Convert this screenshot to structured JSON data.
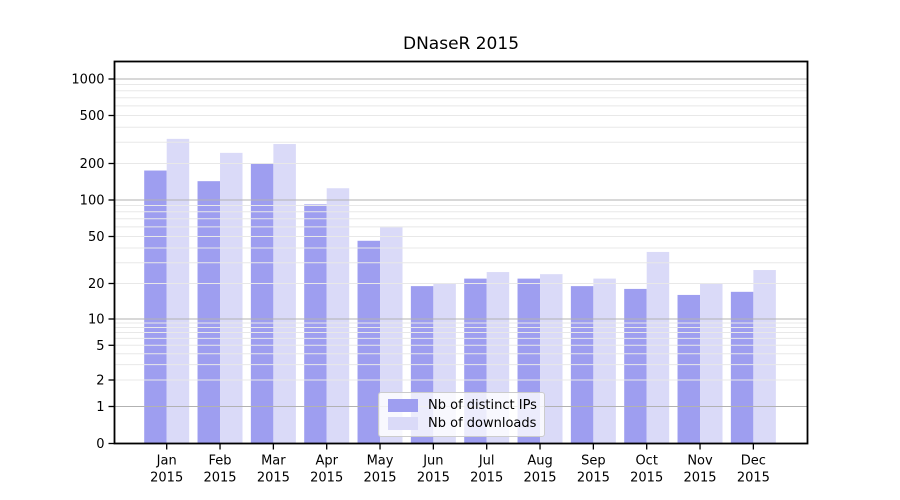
{
  "title": "DNaseR 2015",
  "chart_data": {
    "type": "bar",
    "title": "DNaseR 2015",
    "categories": [
      "Jan 2015",
      "Feb 2015",
      "Mar 2015",
      "Apr 2015",
      "May 2015",
      "Jun 2015",
      "Jul 2015",
      "Aug 2015",
      "Sep 2015",
      "Oct 2015",
      "Nov 2015",
      "Dec 2015"
    ],
    "x_tick_line1": [
      "Jan",
      "Feb",
      "Mar",
      "Apr",
      "May",
      "Jun",
      "Jul",
      "Aug",
      "Sep",
      "Oct",
      "Nov",
      "Dec"
    ],
    "x_tick_line2": [
      "2015",
      "2015",
      "2015",
      "2015",
      "2015",
      "2015",
      "2015",
      "2015",
      "2015",
      "2015",
      "2015",
      "2015"
    ],
    "series": [
      {
        "name": "Nb of distinct IPs",
        "color": "#9e9ef0",
        "values": [
          175,
          143,
          200,
          92,
          46,
          19,
          22,
          22,
          19,
          18,
          16,
          17
        ]
      },
      {
        "name": "Nb of downloads",
        "color": "#dadaf8",
        "values": [
          320,
          245,
          290,
          125,
          60,
          20,
          25,
          24,
          22,
          37,
          20,
          26
        ]
      }
    ],
    "y_axis": {
      "scale": "log-like (log spacing above 1, zero baseline)",
      "tick_values": [
        0,
        1,
        2,
        5,
        10,
        20,
        50,
        100,
        200,
        500,
        1000
      ],
      "tick_labels": [
        "0",
        "1",
        "2",
        "5",
        "10",
        "20",
        "50",
        "100",
        "200",
        "500",
        "1000"
      ],
      "major_gridlines_at": [
        1,
        10,
        100,
        1000
      ],
      "minor_gridlines": "2-9 of each decade, light gray"
    },
    "xlabel": "",
    "ylabel": "",
    "grid": {
      "horizontal": true,
      "vertical": false,
      "drawn_above_bars": true
    },
    "legend": {
      "position": "inside lower-center-left",
      "entries": [
        "Nb of distinct IPs",
        "Nb of downloads"
      ]
    },
    "colors": {
      "bar_dark": "#9e9ef0",
      "bar_light": "#dadaf8",
      "major_grid": "#b2b2b2",
      "minor_grid": "#e8e8e8",
      "axis": "#000000",
      "background": "#ffffff"
    }
  }
}
